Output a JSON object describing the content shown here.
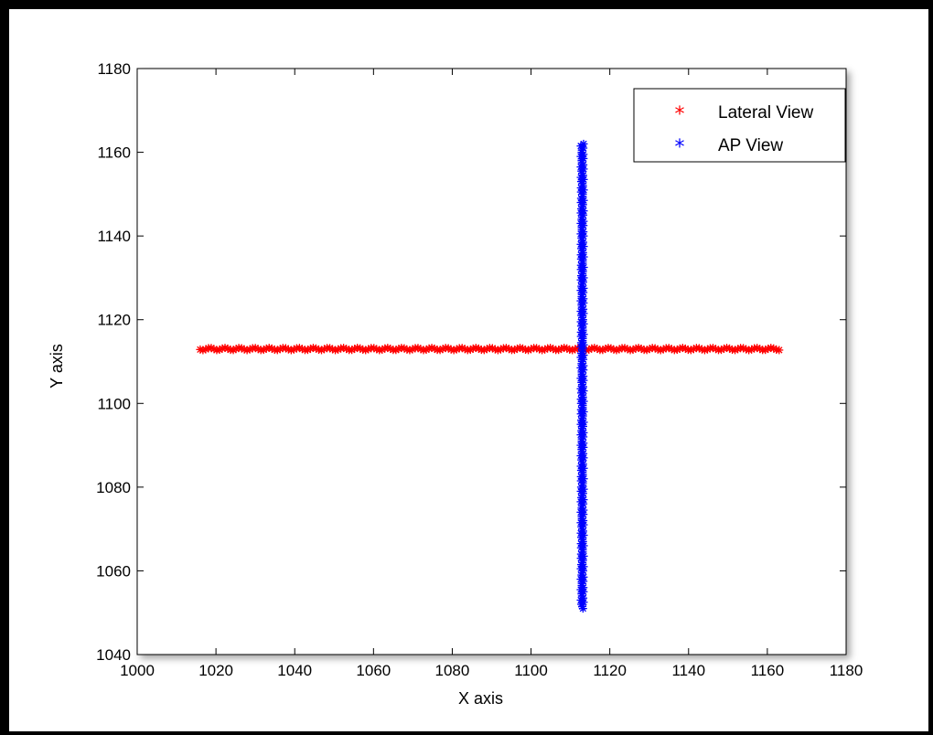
{
  "chart_data": {
    "type": "scatter",
    "xlabel": "X axis",
    "ylabel": "Y axis",
    "xlim": [
      1000,
      1180
    ],
    "ylim": [
      1040,
      1180
    ],
    "xticks": [
      1000,
      1020,
      1040,
      1060,
      1080,
      1100,
      1120,
      1140,
      1160,
      1180
    ],
    "yticks": [
      1040,
      1060,
      1080,
      1100,
      1120,
      1140,
      1160,
      1180
    ],
    "grid": false,
    "legend_position": "top-right",
    "marker": "*",
    "series": [
      {
        "name": "Lateral View",
        "color": "#ff0000",
        "x_range": [
          1016,
          1163
        ],
        "y_value": 1113
      },
      {
        "name": "AP View",
        "color": "#0000ff",
        "x_value": 1113,
        "y_range": [
          1051,
          1162
        ]
      }
    ]
  }
}
